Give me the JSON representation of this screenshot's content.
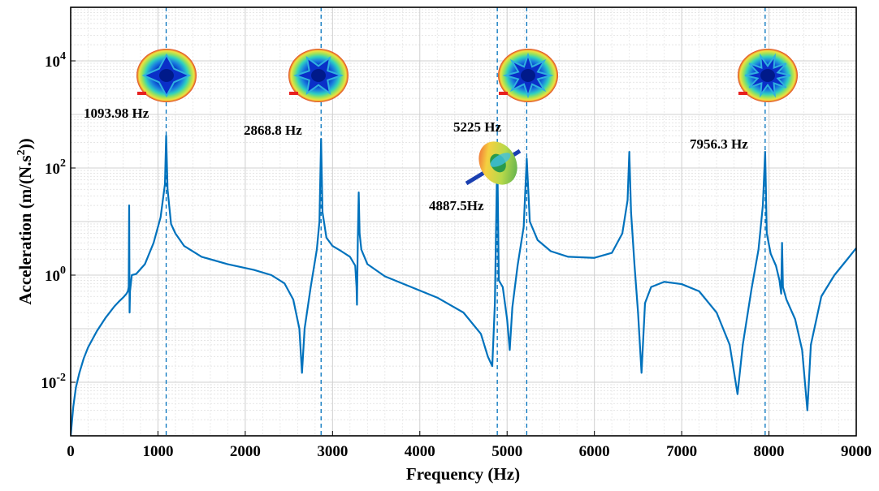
{
  "chart_data": {
    "type": "line",
    "title": "",
    "xlabel": "Frequency (Hz)",
    "ylabel": "Acceleration (m/(N.s",
    "ylabel_sup": "2",
    "ylabel_end": "))",
    "xlim": [
      0,
      9000
    ],
    "ylim_log10": [
      -3,
      5
    ],
    "y_scale": "log",
    "grid": true,
    "x_ticks": [
      "0",
      "1000",
      "2000",
      "3000",
      "4000",
      "5000",
      "6000",
      "7000",
      "8000",
      "9000"
    ],
    "y_tick_mantissa": "10",
    "y_tick_exponents": [
      "-2",
      "0",
      "2",
      "4"
    ],
    "line_color": "#0072BD",
    "marker_line_color": "#0072BD",
    "peak_markers_hz": [
      1093.98,
      2868.8,
      4887.5,
      5225,
      7956.3
    ],
    "peak_labels": [
      {
        "text": "1093.98 Hz",
        "hz": 1093.98
      },
      {
        "text": "2868.8 Hz",
        "hz": 2868.8
      },
      {
        "text": "5225 Hz",
        "hz": 5225
      },
      {
        "text": "4887.5Hz",
        "hz": 4887.5
      },
      {
        "text": "7956.3 Hz",
        "hz": 7956.3
      }
    ],
    "mode_shape_insets": [
      {
        "hz": 1093.98,
        "icon": "plate-mode-shape-4-lobe"
      },
      {
        "hz": 2868.8,
        "icon": "plate-mode-shape-6-lobe"
      },
      {
        "hz": 4887.5,
        "icon": "shaft-disk-mode-shape"
      },
      {
        "hz": 5225,
        "icon": "plate-mode-shape-8-lobe"
      },
      {
        "hz": 7956.3,
        "icon": "plate-mode-shape-10-lobe"
      }
    ],
    "series": [
      {
        "points": [
          [
            0,
            0.001
          ],
          [
            30,
            0.0035
          ],
          [
            60,
            0.008
          ],
          [
            100,
            0.015
          ],
          [
            150,
            0.028
          ],
          [
            200,
            0.045
          ],
          [
            300,
            0.09
          ],
          [
            400,
            0.16
          ],
          [
            500,
            0.26
          ],
          [
            560,
            0.33
          ],
          [
            600,
            0.38
          ],
          [
            640,
            0.45
          ],
          [
            655,
            0.5
          ],
          [
            665,
            0.6
          ],
          [
            670,
            20
          ],
          [
            675,
            0.2
          ],
          [
            680,
            0.5
          ],
          [
            700,
            1.0
          ],
          [
            750,
            1.05
          ],
          [
            850,
            1.6
          ],
          [
            950,
            4
          ],
          [
            1030,
            12
          ],
          [
            1080,
            50
          ],
          [
            1093.98,
            400
          ],
          [
            1110,
            40
          ],
          [
            1150,
            9
          ],
          [
            1200,
            6
          ],
          [
            1300,
            3.5
          ],
          [
            1500,
            2.2
          ],
          [
            1800,
            1.6
          ],
          [
            2100,
            1.25
          ],
          [
            2300,
            1.0
          ],
          [
            2450,
            0.7
          ],
          [
            2550,
            0.35
          ],
          [
            2620,
            0.1
          ],
          [
            2650,
            0.015
          ],
          [
            2680,
            0.1
          ],
          [
            2750,
            0.6
          ],
          [
            2820,
            3
          ],
          [
            2850,
            10
          ],
          [
            2868.8,
            350
          ],
          [
            2885,
            15
          ],
          [
            2930,
            5
          ],
          [
            3000,
            3.5
          ],
          [
            3100,
            2.8
          ],
          [
            3200,
            2.2
          ],
          [
            3260,
            1.5
          ],
          [
            3275,
            0.6
          ],
          [
            3280,
            0.28
          ],
          [
            3290,
            5
          ],
          [
            3300,
            35
          ],
          [
            3310,
            6
          ],
          [
            3330,
            3
          ],
          [
            3400,
            1.6
          ],
          [
            3600,
            0.95
          ],
          [
            3900,
            0.6
          ],
          [
            4200,
            0.38
          ],
          [
            4500,
            0.2
          ],
          [
            4700,
            0.08
          ],
          [
            4780,
            0.03
          ],
          [
            4830,
            0.02
          ],
          [
            4860,
            0.3
          ],
          [
            4887.5,
            200
          ],
          [
            4905,
            0.8
          ],
          [
            4950,
            0.6
          ],
          [
            5000,
            0.15
          ],
          [
            5030,
            0.04
          ],
          [
            5060,
            0.25
          ],
          [
            5120,
            1.5
          ],
          [
            5190,
            8
          ],
          [
            5225,
            150
          ],
          [
            5260,
            10
          ],
          [
            5350,
            4.5
          ],
          [
            5500,
            2.8
          ],
          [
            5700,
            2.2
          ],
          [
            6000,
            2.1
          ],
          [
            6200,
            2.6
          ],
          [
            6320,
            6
          ],
          [
            6380,
            25
          ],
          [
            6400,
            200
          ],
          [
            6420,
            15
          ],
          [
            6460,
            1.5
          ],
          [
            6500,
            0.2
          ],
          [
            6540,
            0.015
          ],
          [
            6580,
            0.3
          ],
          [
            6650,
            0.6
          ],
          [
            6800,
            0.75
          ],
          [
            7000,
            0.68
          ],
          [
            7200,
            0.5
          ],
          [
            7400,
            0.2
          ],
          [
            7550,
            0.05
          ],
          [
            7640,
            0.006
          ],
          [
            7700,
            0.05
          ],
          [
            7800,
            0.55
          ],
          [
            7880,
            3
          ],
          [
            7930,
            20
          ],
          [
            7956.3,
            200
          ],
          [
            7975,
            6
          ],
          [
            8020,
            2.5
          ],
          [
            8080,
            1.5
          ],
          [
            8120,
            0.8
          ],
          [
            8140,
            0.45
          ],
          [
            8150,
            4
          ],
          [
            8160,
            0.6
          ],
          [
            8200,
            0.35
          ],
          [
            8300,
            0.15
          ],
          [
            8380,
            0.04
          ],
          [
            8440,
            0.003
          ],
          [
            8480,
            0.05
          ],
          [
            8600,
            0.4
          ],
          [
            8750,
            1.0
          ],
          [
            8900,
            2.0
          ],
          [
            9000,
            3.2
          ]
        ]
      }
    ]
  }
}
